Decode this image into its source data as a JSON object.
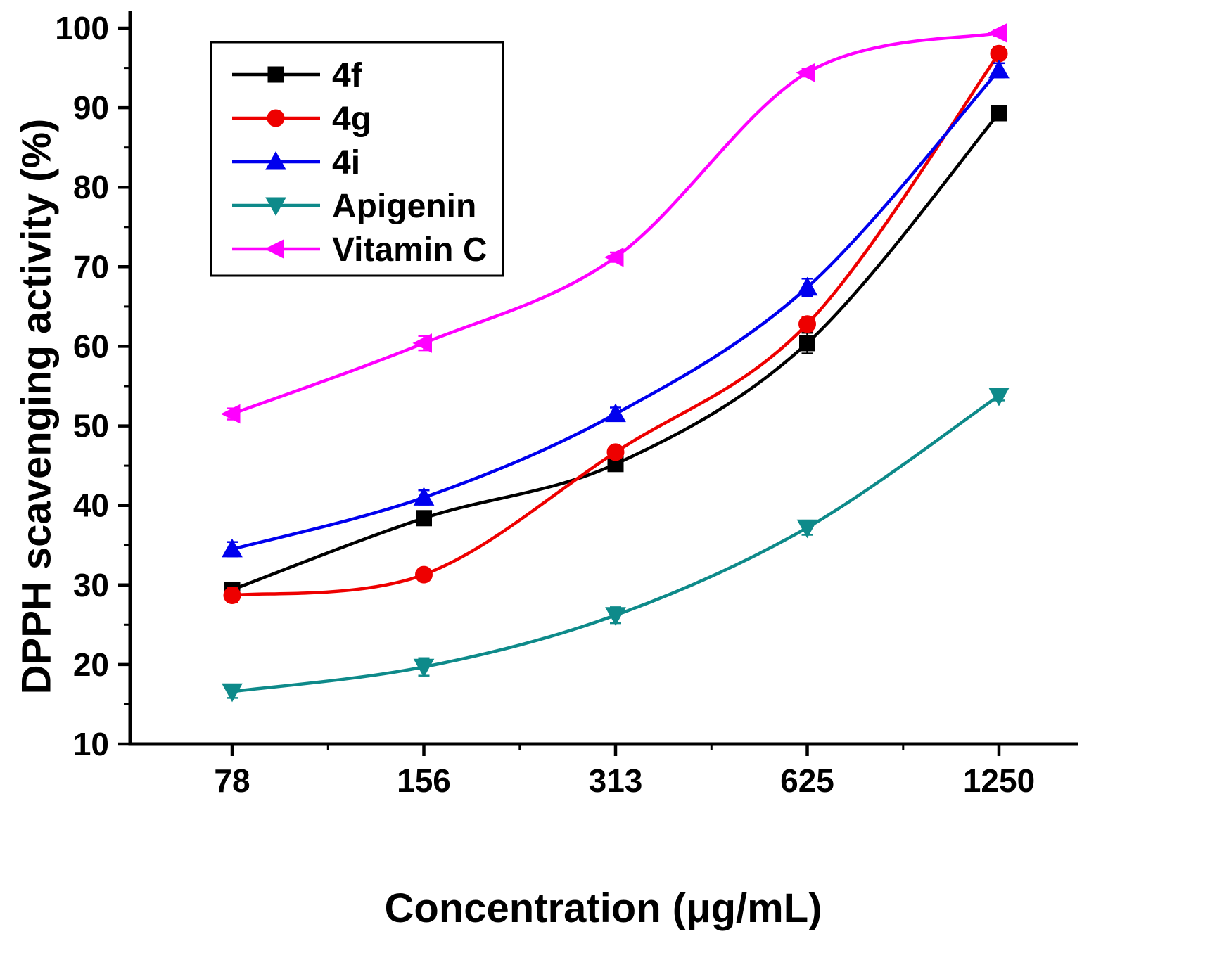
{
  "chart_data": {
    "type": "line",
    "title": "",
    "xlabel": "Concentration (μg/mL)",
    "ylabel": "DPPH scavenging activity (%)",
    "categories": [
      "78",
      "156",
      "313",
      "625",
      "1250"
    ],
    "ylim": [
      10,
      100
    ],
    "ytick_step": 10,
    "ytick_minor_step": 5,
    "grid": false,
    "legend_position": "top-left",
    "series": [
      {
        "name": "4f",
        "color": "#000000",
        "marker": "square",
        "values": [
          29.4,
          38.4,
          45.2,
          60.4,
          89.3
        ],
        "errors": [
          0.6,
          0.8,
          0.7,
          1.3,
          0.6
        ]
      },
      {
        "name": "4g",
        "color": "#ee0000",
        "marker": "circle",
        "values": [
          28.7,
          31.3,
          46.7,
          62.8,
          96.8
        ],
        "errors": [
          0.9,
          0.5,
          0.6,
          0.9,
          0.8
        ]
      },
      {
        "name": "4i",
        "color": "#0000ee",
        "marker": "triangle-up",
        "values": [
          34.5,
          41.0,
          51.5,
          67.4,
          94.7
        ],
        "errors": [
          0.9,
          0.9,
          0.8,
          1.1,
          0.9
        ]
      },
      {
        "name": "Apigenin",
        "color": "#0e8a8a",
        "marker": "triangle-down",
        "values": [
          16.6,
          19.7,
          26.2,
          37.2,
          53.8
        ],
        "errors": [
          0.8,
          1.1,
          1.0,
          0.9,
          0.6
        ]
      },
      {
        "name": "Vitamin C",
        "color": "#ff00ff",
        "marker": "triangle-left",
        "values": [
          51.5,
          60.4,
          71.2,
          94.4,
          99.4
        ],
        "errors": [
          0.7,
          0.9,
          0.6,
          0.5,
          0.4
        ]
      }
    ]
  }
}
